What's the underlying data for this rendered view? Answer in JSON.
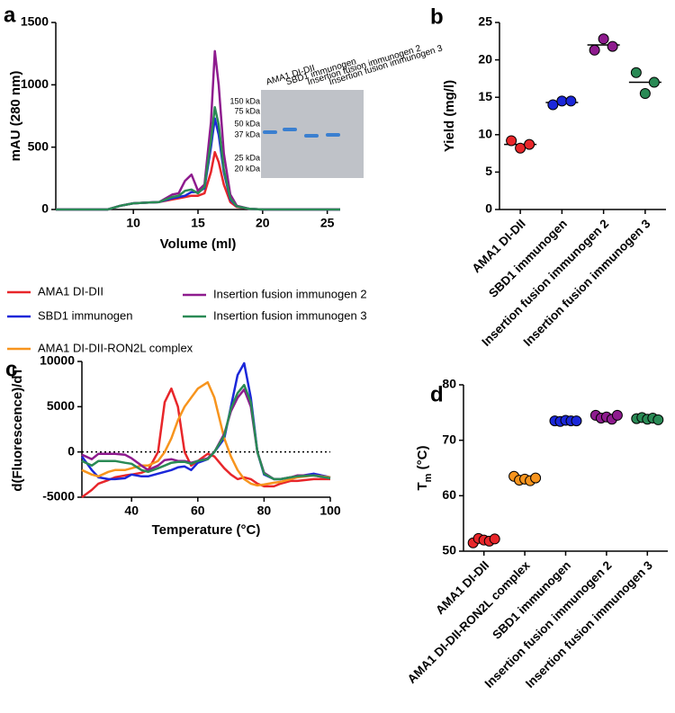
{
  "chart_data": [
    {
      "panel": "a",
      "type": "line",
      "xlabel": "Volume (ml)",
      "ylabel": "mAU (280 nm)",
      "xlim": [
        4,
        26
      ],
      "xticks": [
        10,
        15,
        20,
        25
      ],
      "ylim": [
        0,
        1500
      ],
      "yticks": [
        0,
        500,
        1000,
        1500
      ],
      "x": [
        4,
        8,
        9,
        10,
        11,
        12,
        13,
        13.5,
        14,
        14.5,
        15,
        15.5,
        16,
        16.3,
        16.6,
        17,
        17.5,
        18,
        19,
        20,
        21,
        22,
        23,
        24,
        26
      ],
      "series": [
        {
          "color": "#e8262a",
          "values": [
            0,
            0,
            30,
            50,
            55,
            60,
            80,
            90,
            100,
            110,
            110,
            130,
            300,
            460,
            380,
            200,
            60,
            20,
            5,
            0,
            0,
            0,
            0,
            0,
            0
          ]
        },
        {
          "color": "#1b27d9",
          "values": [
            0,
            0,
            30,
            50,
            55,
            60,
            90,
            100,
            110,
            140,
            140,
            170,
            500,
            730,
            600,
            300,
            80,
            25,
            5,
            0,
            0,
            0,
            0,
            0,
            0
          ]
        },
        {
          "color": "#8e1b8e",
          "values": [
            0,
            0,
            30,
            50,
            55,
            60,
            120,
            130,
            230,
            280,
            150,
            200,
            700,
            1270,
            1000,
            450,
            120,
            30,
            5,
            0,
            0,
            0,
            0,
            0,
            0
          ]
        },
        {
          "color": "#2a8a55",
          "values": [
            0,
            0,
            30,
            50,
            55,
            60,
            100,
            110,
            150,
            160,
            130,
            180,
            550,
            820,
            680,
            320,
            90,
            25,
            5,
            0,
            0,
            0,
            0,
            0,
            0
          ]
        }
      ],
      "inset": {
        "lanes": [
          "AMA1 DI-DII",
          "SBD1 immunogen",
          "Insertion fusion immunogen 2",
          "Insertion fusion immunogen 3"
        ],
        "markers": [
          "150 kDa",
          "75 kDa",
          "50 kDa",
          "37 kDa",
          "25 kDa",
          "20 kDa"
        ]
      }
    },
    {
      "panel": "b",
      "type": "scatter",
      "ylabel": "Yield (mg/l)",
      "categories": [
        "AMA1 DI-DII",
        "SBD1 immunogen",
        "Insertion fusion immunogen 2",
        "Insertion fusion immunogen 3"
      ],
      "colors": [
        "#e8262a",
        "#1b27d9",
        "#8e1b8e",
        "#2a8a55"
      ],
      "values": [
        [
          9.2,
          8.2,
          8.7
        ],
        [
          14.0,
          14.5,
          14.5
        ],
        [
          21.3,
          22.8,
          21.8
        ],
        [
          18.3,
          15.5,
          17.0
        ]
      ],
      "means": [
        8.7,
        14.3,
        22,
        17
      ],
      "ylim": [
        0,
        25
      ],
      "yticks": [
        0,
        5,
        10,
        15,
        20,
        25
      ]
    },
    {
      "panel": "c",
      "type": "line",
      "xlabel": "Temperature (°C)",
      "ylabel": "d(Fluorescence)/dT",
      "xlim": [
        25,
        100
      ],
      "xticks": [
        40,
        60,
        80,
        100
      ],
      "ylim": [
        -5000,
        10000
      ],
      "yticks": [
        -5000,
        0,
        5000,
        10000
      ],
      "reference_line": 0,
      "x": [
        25,
        28,
        30,
        33,
        35,
        38,
        40,
        43,
        45,
        48,
        50,
        52,
        54,
        56,
        58,
        60,
        63,
        65,
        68,
        70,
        72,
        74,
        76,
        78,
        80,
        83,
        85,
        88,
        90,
        95,
        100
      ],
      "series": [
        {
          "name": "AMA1 DI-DII",
          "color": "#e8262a",
          "values": [
            -5000,
            -4200,
            -3500,
            -3100,
            -2800,
            -2600,
            -2500,
            -2300,
            -2000,
            0,
            5500,
            7000,
            5000,
            0,
            -1500,
            -1000,
            -200,
            -500,
            -1800,
            -2500,
            -3000,
            -2800,
            -3000,
            -3500,
            -3800,
            -3800,
            -3500,
            -3200,
            -3200,
            -3000,
            -3000
          ]
        },
        {
          "name": "SBD1 immunogen",
          "color": "#1b27d9",
          "values": [
            -500,
            -2000,
            -2800,
            -3000,
            -3000,
            -2900,
            -2500,
            -2700,
            -2700,
            -2400,
            -2200,
            -2000,
            -1700,
            -1600,
            -2000,
            -1200,
            -800,
            0,
            1500,
            5000,
            8500,
            9800,
            6000,
            0,
            -2500,
            -3000,
            -3000,
            -2800,
            -2700,
            -2400,
            -2800
          ]
        },
        {
          "name": "AMA1 DI-DII-RON2L complex",
          "color": "#f7941d",
          "values": [
            -2000,
            -2500,
            -2700,
            -2200,
            -2000,
            -2000,
            -1800,
            -1500,
            -1500,
            -1000,
            0,
            1500,
            3500,
            5000,
            6000,
            7000,
            7700,
            6000,
            1500,
            -500,
            -2000,
            -3000,
            -3500,
            -3700,
            -3600,
            -3400,
            -3300,
            -3000,
            -2800,
            -2600,
            -2800
          ]
        },
        {
          "name": "Insertion fusion immunogen 2",
          "color": "#8e1b8e",
          "values": [
            -300,
            -800,
            -200,
            -200,
            -200,
            -300,
            -700,
            -1500,
            -2000,
            -1500,
            -900,
            -800,
            -1000,
            -1000,
            -1200,
            -1000,
            -700,
            0,
            2000,
            4500,
            6000,
            6900,
            5000,
            0,
            -2300,
            -3000,
            -3000,
            -2800,
            -2600,
            -2600,
            -2900
          ]
        },
        {
          "name": "Insertion fusion immunogen 3",
          "color": "#2a8a55",
          "values": [
            -1000,
            -1500,
            -1000,
            -1000,
            -1000,
            -1200,
            -1300,
            -2000,
            -2200,
            -1800,
            -1500,
            -1200,
            -1100,
            -1100,
            -1300,
            -1000,
            -800,
            0,
            1800,
            4800,
            6500,
            7400,
            5500,
            0,
            -2400,
            -3000,
            -3000,
            -2800,
            -2700,
            -2600,
            -2900
          ]
        }
      ]
    },
    {
      "panel": "d",
      "type": "scatter",
      "ylabel": {
        "text": "T",
        "sub": "m",
        "rest": " (°C)"
      },
      "categories": [
        "AMA1 DI-DII",
        "AMA1 DI-DII-RON2L complex",
        "SBD1 immunogen",
        "Insertion fusion immunogen 2",
        "Insertion fusion immunogen 3"
      ],
      "colors": [
        "#e8262a",
        "#f7941d",
        "#1b27d9",
        "#8e1b8e",
        "#2a8a55"
      ],
      "values": [
        [
          51.5,
          52.3,
          52.0,
          51.8,
          52.2
        ],
        [
          63.5,
          62.8,
          63.0,
          62.7,
          63.2
        ],
        [
          73.5,
          73.4,
          73.6,
          73.5,
          73.5
        ],
        [
          74.5,
          74.0,
          74.2,
          73.8,
          74.5
        ],
        [
          73.9,
          74.1,
          73.8,
          74.0,
          73.7
        ]
      ],
      "ylim": [
        50,
        80
      ],
      "yticks": [
        50,
        60,
        70,
        80
      ]
    }
  ]
}
